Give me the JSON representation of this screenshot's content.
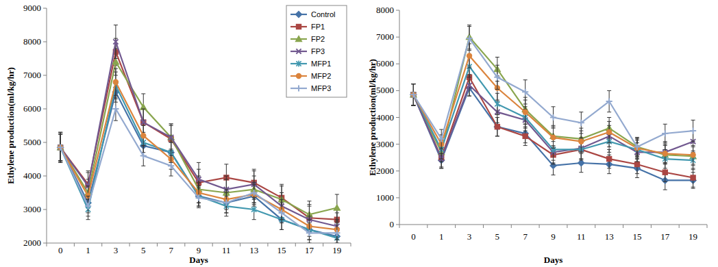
{
  "chart_data": [
    {
      "type": "line",
      "x_label": "Days",
      "y_label": "Ethylene production(ml/kg/hr)",
      "categories": [
        "0",
        "1",
        "3",
        "5",
        "7",
        "9",
        "11",
        "13",
        "15",
        "17",
        "19"
      ],
      "ylim": [
        2000,
        9000
      ],
      "yticks": [
        2000,
        3000,
        4000,
        5000,
        6000,
        7000,
        8000,
        9000
      ],
      "grid": false,
      "legend": "top-right",
      "series": [
        {
          "name": "Control",
          "color": "#4572a7",
          "marker": "diamond",
          "values": [
            4850,
            3200,
            6500,
            4900,
            4700,
            3400,
            3200,
            3400,
            2700,
            2400,
            2200
          ],
          "errors": [
            400,
            300,
            300,
            300,
            300,
            300,
            300,
            300,
            300,
            300,
            250
          ]
        },
        {
          "name": "FP1",
          "color": "#aa4643",
          "marker": "square",
          "values": [
            4850,
            3750,
            7700,
            5600,
            5100,
            3800,
            3950,
            3800,
            3350,
            2750,
            2700
          ],
          "errors": [
            450,
            400,
            400,
            400,
            400,
            400,
            400,
            400,
            400,
            400,
            300
          ]
        },
        {
          "name": "FP2",
          "color": "#89a54e",
          "marker": "triangle",
          "values": [
            4850,
            3500,
            7400,
            6050,
            5150,
            3600,
            3500,
            3600,
            3300,
            2850,
            3050
          ],
          "errors": [
            450,
            400,
            400,
            400,
            400,
            400,
            400,
            400,
            400,
            400,
            400
          ]
        },
        {
          "name": "FP3",
          "color": "#71588f",
          "marker": "x",
          "values": [
            4850,
            3700,
            8000,
            5600,
            5150,
            3900,
            3600,
            3750,
            3100,
            2700,
            2500
          ],
          "errors": [
            450,
            400,
            500,
            400,
            400,
            500,
            400,
            400,
            400,
            400,
            400
          ]
        },
        {
          "name": "MFP1",
          "color": "#4198af",
          "marker": "star",
          "values": [
            4850,
            3000,
            6700,
            5000,
            4700,
            3400,
            3100,
            3000,
            2700,
            2400,
            2150
          ],
          "errors": [
            400,
            300,
            400,
            300,
            300,
            300,
            300,
            300,
            300,
            300,
            250
          ]
        },
        {
          "name": "MFP2",
          "color": "#db843d",
          "marker": "circle",
          "values": [
            4850,
            3400,
            6800,
            5200,
            4500,
            3500,
            3300,
            3450,
            3000,
            2500,
            2400
          ],
          "errors": [
            400,
            300,
            400,
            300,
            300,
            300,
            300,
            300,
            300,
            300,
            300
          ]
        },
        {
          "name": "MFP3",
          "color": "#93a9cf",
          "marker": "plus",
          "values": [
            4850,
            3100,
            6000,
            4600,
            4300,
            3350,
            3200,
            3500,
            2900,
            2300,
            2300
          ],
          "errors": [
            400,
            300,
            350,
            300,
            300,
            300,
            300,
            300,
            300,
            300,
            300
          ]
        }
      ]
    },
    {
      "type": "line",
      "x_label": "Days",
      "y_label": "Ethylene production(ml/kg/hr)",
      "categories": [
        "0",
        "1",
        "3",
        "5",
        "7",
        "9",
        "11",
        "13",
        "15",
        "17",
        "19"
      ],
      "ylim": [
        0,
        8000
      ],
      "yticks": [
        0,
        1000,
        2000,
        3000,
        4000,
        5000,
        6000,
        7000,
        8000
      ],
      "grid": false,
      "series": [
        {
          "color": "#4572a7",
          "marker": "diamond",
          "values": [
            4850,
            2400,
            5100,
            3650,
            3400,
            2200,
            2300,
            2250,
            2100,
            1650,
            1650
          ],
          "errors": [
            400,
            300,
            300,
            350,
            350,
            350,
            350,
            350,
            350,
            350,
            300
          ]
        },
        {
          "color": "#aa4643",
          "marker": "square",
          "values": [
            4850,
            2500,
            5500,
            3650,
            3300,
            2600,
            2800,
            2450,
            2250,
            1950,
            1750
          ],
          "errors": [
            400,
            350,
            400,
            350,
            350,
            350,
            350,
            350,
            350,
            350,
            350
          ]
        },
        {
          "color": "#89a54e",
          "marker": "triangle",
          "values": [
            4850,
            2700,
            7000,
            5800,
            4300,
            3300,
            3200,
            3600,
            2900,
            2600,
            2550
          ],
          "errors": [
            400,
            350,
            450,
            450,
            450,
            400,
            400,
            400,
            350,
            350,
            350
          ]
        },
        {
          "color": "#71588f",
          "marker": "x",
          "values": [
            4850,
            2450,
            5200,
            4200,
            3900,
            2700,
            2850,
            3300,
            2700,
            2700,
            3100
          ],
          "errors": [
            400,
            350,
            400,
            400,
            400,
            400,
            400,
            400,
            350,
            400,
            400
          ]
        },
        {
          "color": "#4198af",
          "marker": "star",
          "values": [
            4850,
            2800,
            5900,
            4500,
            4000,
            2800,
            2800,
            3100,
            2800,
            2450,
            2400
          ],
          "errors": [
            400,
            350,
            400,
            400,
            400,
            400,
            400,
            400,
            350,
            350,
            350
          ]
        },
        {
          "color": "#db843d",
          "marker": "circle",
          "values": [
            4850,
            3000,
            6300,
            5100,
            4200,
            3250,
            3100,
            3450,
            2850,
            2650,
            2600
          ],
          "errors": [
            400,
            350,
            450,
            450,
            450,
            400,
            400,
            400,
            350,
            350,
            350
          ]
        },
        {
          "color": "#93a9cf",
          "marker": "plus",
          "values": [
            4850,
            3200,
            6950,
            5500,
            4950,
            4000,
            3800,
            4600,
            2900,
            3400,
            3500
          ],
          "errors": [
            400,
            350,
            450,
            450,
            450,
            400,
            400,
            400,
            350,
            350,
            400
          ]
        }
      ]
    }
  ]
}
